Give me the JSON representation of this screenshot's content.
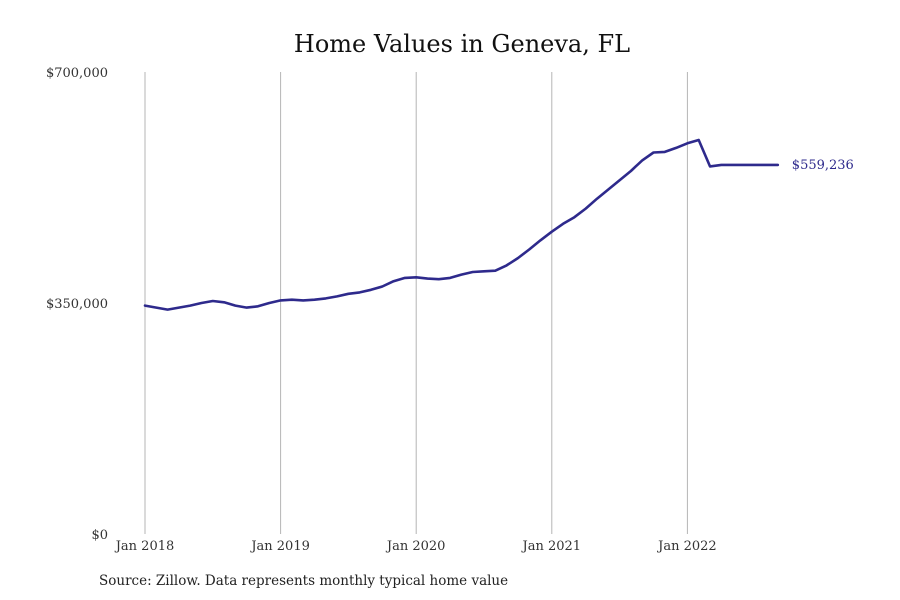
{
  "chart_data": {
    "type": "line",
    "title": "Home Values in Geneva, FL",
    "source": "Source: Zillow. Data represents monthly typical home value",
    "y_ticks": [
      "$0",
      "$350,000",
      "$700,000"
    ],
    "y_tick_values": [
      0,
      350000,
      700000
    ],
    "ylim": [
      0,
      700000
    ],
    "x_ticks": [
      "Jan 2018",
      "Jan 2019",
      "Jan 2020",
      "Jan 2021",
      "Jan 2022"
    ],
    "grid": "vertical lines at year starts",
    "line_color": "#2e2a8c",
    "end_label": "$559,236",
    "series": [
      {
        "x": [
          "2018-01",
          "2018-02",
          "2018-03",
          "2018-04",
          "2018-05",
          "2018-06",
          "2018-07",
          "2018-08",
          "2018-09",
          "2018-10",
          "2018-11",
          "2018-12",
          "2019-01",
          "2019-02",
          "2019-03",
          "2019-04",
          "2019-05",
          "2019-06",
          "2019-07",
          "2019-08",
          "2019-09",
          "2019-10",
          "2019-11",
          "2019-12",
          "2020-01",
          "2020-02",
          "2020-03",
          "2020-04",
          "2020-05",
          "2020-06",
          "2020-07",
          "2020-08",
          "2020-09",
          "2020-10",
          "2020-11",
          "2020-12",
          "2021-01",
          "2021-02",
          "2021-03",
          "2021-04",
          "2021-05",
          "2021-06",
          "2021-07",
          "2021-08",
          "2021-09",
          "2021-10",
          "2021-11",
          "2021-12",
          "2022-01",
          "2022-02",
          "2022-03",
          "2022-04",
          "2022-05",
          "2022-06",
          "2022-07",
          "2022-08",
          "2022-09"
        ],
        "values": [
          346000,
          343000,
          340000,
          343000,
          346000,
          350000,
          353000,
          351000,
          346000,
          343000,
          345000,
          350000,
          354000,
          355000,
          354000,
          355000,
          357000,
          360000,
          364000,
          366000,
          370000,
          375000,
          383000,
          388000,
          389000,
          387000,
          386000,
          388000,
          393000,
          397000,
          398000,
          399000,
          407000,
          418000,
          431000,
          445000,
          458000,
          470000,
          480000,
          493000,
          508000,
          522000,
          536000,
          550000,
          566000,
          578000,
          579000,
          585000,
          592000,
          597000,
          557000,
          559236,
          559236,
          559236,
          559236,
          559236,
          559236
        ]
      }
    ]
  }
}
